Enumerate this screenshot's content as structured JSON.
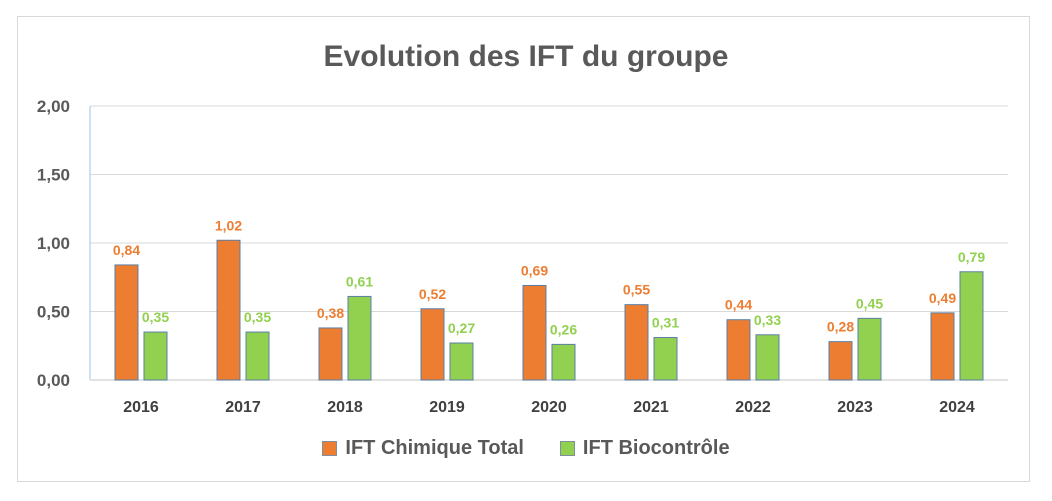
{
  "chart_data": {
    "type": "bar",
    "title": "Evolution des IFT du groupe",
    "categories": [
      "2016",
      "2017",
      "2018",
      "2019",
      "2020",
      "2021",
      "2022",
      "2023",
      "2024"
    ],
    "series": [
      {
        "name": "IFT Chimique Total",
        "color": "#ed7d31",
        "values": [
          0.84,
          1.02,
          0.38,
          0.52,
          0.69,
          0.55,
          0.44,
          0.28,
          0.49
        ],
        "labels": [
          "0,84",
          "1,02",
          "0,38",
          "0,52",
          "0,69",
          "0,55",
          "0,44",
          "0,28",
          "0,49"
        ]
      },
      {
        "name": "IFT Biocontrôle",
        "color": "#92d050",
        "values": [
          0.35,
          0.35,
          0.61,
          0.27,
          0.26,
          0.31,
          0.33,
          0.45,
          0.79
        ],
        "labels": [
          "0,35",
          "0,35",
          "0,61",
          "0,27",
          "0,26",
          "0,31",
          "0,33",
          "0,45",
          "0,79"
        ]
      }
    ],
    "ylim": [
      0,
      2
    ],
    "yticks": [
      0,
      0.5,
      1,
      1.5,
      2
    ],
    "ytick_labels": [
      "0,00",
      "0,50",
      "1,00",
      "1,50",
      "2,00"
    ],
    "xlabel": "",
    "ylabel": "",
    "grid": true,
    "legend_position": "bottom"
  },
  "colors": {
    "series1_text": "#ed7d31",
    "series2_text": "#92d050",
    "gridline": "#d9d9d9",
    "axis": "#9dc3e6"
  }
}
